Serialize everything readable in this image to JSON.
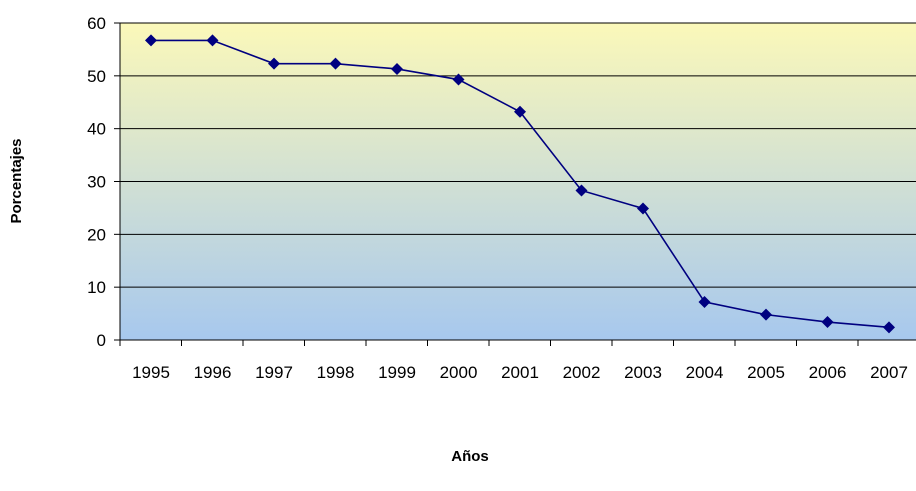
{
  "chart_data": {
    "type": "line",
    "title": "",
    "xlabel": "Años",
    "ylabel": "Porcentajes",
    "categories": [
      "1995",
      "1996",
      "1997",
      "1998",
      "1999",
      "2000",
      "2001",
      "2002",
      "2003",
      "2004",
      "2005",
      "2006",
      "2007"
    ],
    "series": [
      {
        "values": [
          56.7,
          56.7,
          52.3,
          52.3,
          51.3,
          49.3,
          43.2,
          28.3,
          24.9,
          7.2,
          4.8,
          3.4,
          2.4
        ]
      }
    ],
    "ylim": [
      0,
      60
    ],
    "yticks": [
      0,
      10,
      20,
      30,
      40,
      50,
      60
    ],
    "grid": true,
    "legend": "none",
    "colors": {
      "line": "#000080",
      "marker": "#000080",
      "gradient_top": "#fbf8b9",
      "gradient_bottom": "#a7c8ee",
      "gridline": "#000000"
    }
  }
}
